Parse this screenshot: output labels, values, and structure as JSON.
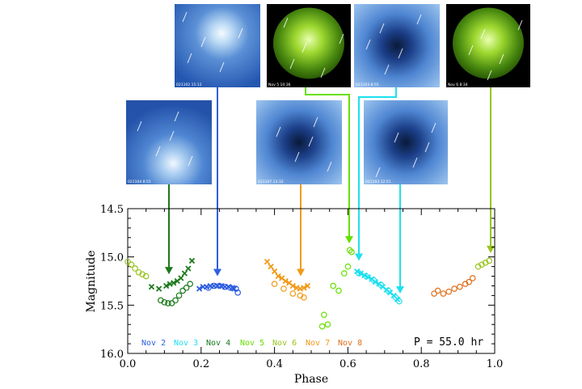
{
  "chart_data": {
    "type": "scatter",
    "title": "",
    "xlabel": "Phase",
    "ylabel": "Magnitude",
    "xlim": [
      0.0,
      1.0
    ],
    "ylim": [
      16.0,
      14.5
    ],
    "y_inverted": true,
    "x_ticks": [
      "0.0",
      "0.2",
      "0.4",
      "0.6",
      "0.8",
      "1.0"
    ],
    "x_tick_values": [
      0.0,
      0.2,
      0.4,
      0.6,
      0.8,
      1.0
    ],
    "y_ticks": [
      "14.5",
      "15.0",
      "15.5",
      "16.0"
    ],
    "y_tick_values": [
      14.5,
      15.0,
      15.5,
      16.0
    ],
    "annotation": "P = 55.0 hr",
    "legend_position": "bottom",
    "series": [
      {
        "name": "Nov 2",
        "color": "#2f5fe0",
        "marker": "x",
        "x": [
          0.195,
          0.205,
          0.215,
          0.225,
          0.235,
          0.245,
          0.255,
          0.265,
          0.275,
          0.285,
          0.29
        ],
        "y": [
          15.33,
          15.31,
          15.31,
          15.3,
          15.3,
          15.3,
          15.3,
          15.31,
          15.31,
          15.32,
          15.33
        ]
      },
      {
        "name": "Nov 2",
        "color": "#2f5fe0",
        "marker": "o",
        "x": [
          0.22,
          0.235,
          0.25,
          0.265,
          0.28,
          0.295,
          0.3
        ],
        "y": [
          15.32,
          15.3,
          15.3,
          15.31,
          15.32,
          15.33,
          15.37
        ]
      },
      {
        "name": "Nov 3",
        "color": "#1ee0f0",
        "marker": "x",
        "x": [
          0.625,
          0.635,
          0.645,
          0.655,
          0.665,
          0.675,
          0.685,
          0.695,
          0.705,
          0.715,
          0.725,
          0.735
        ],
        "y": [
          15.15,
          15.17,
          15.19,
          15.21,
          15.23,
          15.26,
          15.28,
          15.31,
          15.34,
          15.37,
          15.4,
          15.44
        ]
      },
      {
        "name": "Nov 3",
        "color": "#1ee0f0",
        "marker": "o",
        "x": [
          0.63,
          0.65,
          0.67,
          0.69,
          0.71,
          0.73,
          0.74
        ],
        "y": [
          15.17,
          15.2,
          15.24,
          15.29,
          15.35,
          15.42,
          15.46
        ]
      },
      {
        "name": "Nov 4",
        "color": "#1c7a1c",
        "marker": "x",
        "x": [
          0.065,
          0.085,
          0.105,
          0.115,
          0.125,
          0.135,
          0.145,
          0.155,
          0.165,
          0.175
        ],
        "y": [
          15.31,
          15.33,
          15.3,
          15.28,
          15.27,
          15.25,
          15.22,
          15.17,
          15.12,
          15.04
        ]
      },
      {
        "name": "Nov 4",
        "color": "#1c7a1c",
        "marker": "o",
        "x": [
          0.09,
          0.1,
          0.11,
          0.12,
          0.13,
          0.14,
          0.15,
          0.16,
          0.17
        ],
        "y": [
          15.45,
          15.47,
          15.48,
          15.48,
          15.45,
          15.4,
          15.35,
          15.32,
          15.28
        ]
      },
      {
        "name": "Nov 5",
        "color": "#66e000",
        "marker": "o",
        "x": [
          0.53,
          0.535,
          0.545,
          0.56,
          0.575,
          0.59,
          0.6,
          0.605,
          0.61
        ],
        "y": [
          15.72,
          15.6,
          15.7,
          15.3,
          15.35,
          15.17,
          15.1,
          14.93,
          14.95
        ]
      },
      {
        "name": "Nov 6",
        "color": "#98c41c",
        "marker": "o",
        "x": [
          0.0,
          0.01,
          0.02,
          0.03,
          0.04,
          0.05,
          0.955,
          0.965,
          0.975,
          0.985
        ],
        "y": [
          15.05,
          15.08,
          15.12,
          15.16,
          15.18,
          15.2,
          15.1,
          15.08,
          15.06,
          15.04
        ]
      },
      {
        "name": "Nov 7",
        "color": "#f19a18",
        "marker": "x",
        "x": [
          0.38,
          0.39,
          0.4,
          0.41,
          0.42,
          0.43,
          0.44,
          0.45,
          0.46,
          0.47,
          0.48,
          0.49
        ],
        "y": [
          15.05,
          15.1,
          15.15,
          15.2,
          15.22,
          15.25,
          15.27,
          15.3,
          15.32,
          15.33,
          15.32,
          15.3
        ]
      },
      {
        "name": "Nov 7",
        "color": "#f19a18",
        "marker": "o",
        "x": [
          0.4,
          0.425,
          0.45,
          0.47,
          0.48
        ],
        "y": [
          15.28,
          15.33,
          15.38,
          15.4,
          15.42
        ]
      },
      {
        "name": "Nov 8",
        "color": "#e0701c",
        "marker": "o",
        "x": [
          0.835,
          0.845,
          0.86,
          0.875,
          0.89,
          0.905,
          0.92,
          0.93,
          0.94
        ],
        "y": [
          15.38,
          15.35,
          15.38,
          15.36,
          15.33,
          15.31,
          15.28,
          15.26,
          15.22
        ]
      }
    ],
    "legend": [
      {
        "label": "Nov 2",
        "color": "#2f5fe0"
      },
      {
        "label": "Nov 3",
        "color": "#1ee0f0"
      },
      {
        "label": "Nov 4",
        "color": "#1c7a1c"
      },
      {
        "label": "Nov 5",
        "color": "#66e000"
      },
      {
        "label": "Nov 6",
        "color": "#98c41c"
      },
      {
        "label": "Nov 7",
        "color": "#f19a18"
      },
      {
        "label": "Nov 8",
        "color": "#e0701c"
      }
    ],
    "arrows": [
      {
        "name": "arrow-nov4",
        "color": "#1c7a1c",
        "phase": 0.115,
        "magnitude": 15.18
      },
      {
        "name": "arrow-nov2",
        "color": "#2f5fe0",
        "phase": 0.245,
        "magnitude": 15.2
      },
      {
        "name": "arrow-nov7",
        "color": "#f19a18",
        "phase": 0.47,
        "magnitude": 15.2
      },
      {
        "name": "arrow-nov5",
        "color": "#66e000",
        "phase": 0.605,
        "magnitude": 14.86
      },
      {
        "name": "arrow-nov3a",
        "color": "#1ee0f0",
        "phase": 0.625,
        "magnitude": 15.04
      },
      {
        "name": "arrow-nov3b",
        "color": "#1ee0f0",
        "phase": 0.74,
        "magnitude": 15.38
      },
      {
        "name": "arrow-nov6",
        "color": "#98c41c",
        "phase": 0.985,
        "magnitude": 14.96
      }
    ]
  },
  "thumbnails": [
    {
      "name": "thumb-top-1",
      "caption": "021102 15:12",
      "style": "blue"
    },
    {
      "name": "thumb-top-2",
      "caption": "Nov 5 10:36",
      "style": "green"
    },
    {
      "name": "thumb-top-3",
      "caption": "021103 8:55",
      "style": "blue-dark"
    },
    {
      "name": "thumb-top-4",
      "caption": "Nov 6 8:34",
      "style": "green"
    },
    {
      "name": "thumb-mid-1",
      "caption": "021104 8:55",
      "style": "blue"
    },
    {
      "name": "thumb-mid-2",
      "caption": "021107 13:32",
      "style": "blue-dark"
    },
    {
      "name": "thumb-mid-3",
      "caption": "021103 12:51",
      "style": "blue-dark"
    }
  ],
  "colors": {
    "axis": "#000000",
    "background": "#ffffff"
  }
}
